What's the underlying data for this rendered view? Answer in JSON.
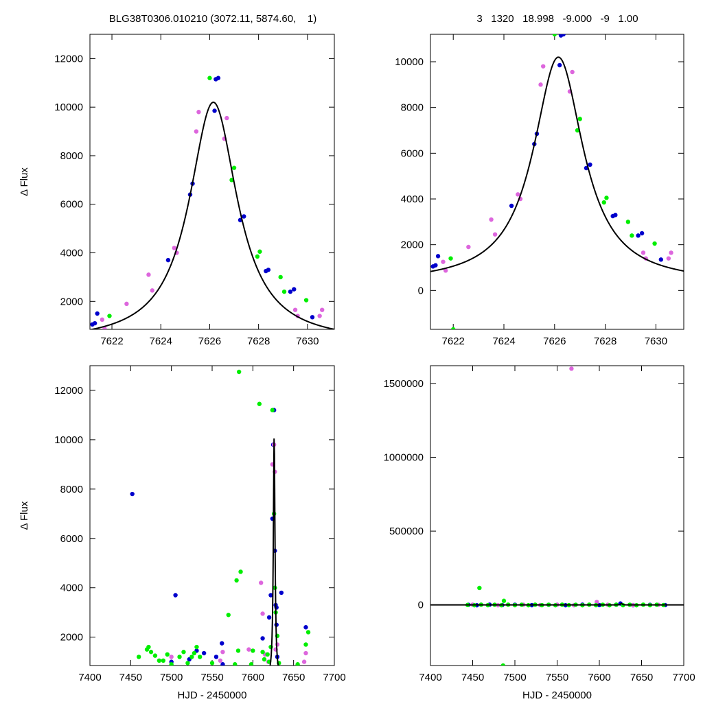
{
  "header": {
    "left_title": "BLG38T0306.010210 (3072.11, 5874.60,    1)",
    "right_title": "3   1320   18.998   -9.000   -9   1.00"
  },
  "colors": {
    "blue": "#0000cc",
    "magenta": "#dd66dd",
    "green": "#00ee00",
    "model": "#000000"
  },
  "chart_data": [
    {
      "panel": "top-left",
      "type": "scatter",
      "title": "",
      "xlabel": "",
      "ylabel": "Δ Flux",
      "xlim": [
        7621.1,
        7631.1
      ],
      "ylim": [
        850,
        13000
      ],
      "xticks": [
        "7622",
        "7624",
        "7626",
        "7628",
        "7630"
      ],
      "yticks": [
        "2000",
        "4000",
        "6000",
        "8000",
        "10000",
        "12000"
      ],
      "model": {
        "t0": 7626.15,
        "peak": 10200,
        "base": 300,
        "tau": 1.2
      },
      "series": [
        {
          "color": "blue",
          "points": [
            [
              7621.2,
              1050
            ],
            [
              7621.3,
              1100
            ],
            [
              7621.4,
              1500
            ],
            [
              7624.3,
              3700
            ],
            [
              7625.2,
              6400
            ],
            [
              7625.3,
              6850
            ],
            [
              7626.2,
              9850
            ],
            [
              7626.25,
              11150
            ],
            [
              7626.35,
              11200
            ],
            [
              7627.25,
              5350
            ],
            [
              7627.4,
              5500
            ],
            [
              7628.3,
              3250
            ],
            [
              7628.4,
              3300
            ],
            [
              7629.3,
              2400
            ],
            [
              7629.45,
              2500
            ],
            [
              7630.2,
              1350
            ]
          ]
        },
        {
          "color": "magenta",
          "points": [
            [
              7621.6,
              1250
            ],
            [
              7621.7,
              870
            ],
            [
              7622.6,
              1900
            ],
            [
              7623.5,
              3100
            ],
            [
              7623.65,
              2450
            ],
            [
              7624.55,
              4200
            ],
            [
              7624.65,
              4000
            ],
            [
              7625.45,
              9000
            ],
            [
              7625.55,
              9800
            ],
            [
              7626.6,
              8700
            ],
            [
              7626.7,
              9550
            ],
            [
              7629.5,
              1650
            ],
            [
              7629.6,
              1400
            ],
            [
              7630.5,
              1400
            ],
            [
              7630.6,
              1650
            ]
          ]
        },
        {
          "color": "green",
          "points": [
            [
              7621.9,
              1400
            ],
            [
              7626.0,
              11200
            ],
            [
              7626.9,
              7000
            ],
            [
              7627.0,
              7500
            ],
            [
              7627.95,
              3850
            ],
            [
              7628.05,
              4050
            ],
            [
              7628.9,
              3000
            ],
            [
              7629.05,
              2400
            ],
            [
              7629.95,
              2050
            ]
          ]
        }
      ]
    },
    {
      "panel": "top-right",
      "type": "scatter",
      "title": "",
      "xlabel": "",
      "ylabel": "",
      "xlim": [
        7621.1,
        7631.1
      ],
      "ylim": [
        -1700,
        11200
      ],
      "xticks": [
        "7622",
        "7624",
        "7626",
        "7628",
        "7630"
      ],
      "yticks": [
        "0",
        "2000",
        "4000",
        "6000",
        "8000",
        "10000"
      ],
      "model": {
        "t0": 7626.15,
        "peak": 10200,
        "base": 300,
        "tau": 1.2
      },
      "series": [
        {
          "color": "blue",
          "points": [
            [
              7621.2,
              1050
            ],
            [
              7621.3,
              1100
            ],
            [
              7621.4,
              1500
            ],
            [
              7624.3,
              3700
            ],
            [
              7625.2,
              6400
            ],
            [
              7625.3,
              6850
            ],
            [
              7626.2,
              9850
            ],
            [
              7626.25,
              11150
            ],
            [
              7626.35,
              11200
            ],
            [
              7627.25,
              5350
            ],
            [
              7627.4,
              5500
            ],
            [
              7628.3,
              3250
            ],
            [
              7628.4,
              3300
            ],
            [
              7629.3,
              2400
            ],
            [
              7629.45,
              2500
            ],
            [
              7630.2,
              1350
            ]
          ]
        },
        {
          "color": "magenta",
          "points": [
            [
              7621.6,
              1250
            ],
            [
              7621.7,
              870
            ],
            [
              7622.6,
              1900
            ],
            [
              7623.5,
              3100
            ],
            [
              7623.65,
              2450
            ],
            [
              7624.55,
              4200
            ],
            [
              7624.65,
              4000
            ],
            [
              7625.45,
              9000
            ],
            [
              7625.55,
              9800
            ],
            [
              7626.6,
              8700
            ],
            [
              7626.7,
              9550
            ],
            [
              7629.5,
              1650
            ],
            [
              7629.6,
              1400
            ],
            [
              7630.5,
              1400
            ],
            [
              7630.6,
              1650
            ]
          ]
        },
        {
          "color": "green",
          "points": [
            [
              7621.9,
              1400
            ],
            [
              7622.0,
              -1700
            ],
            [
              7626.0,
              11200
            ],
            [
              7626.9,
              7000
            ],
            [
              7627.0,
              7500
            ],
            [
              7627.95,
              3850
            ],
            [
              7628.05,
              4050
            ],
            [
              7628.9,
              3000
            ],
            [
              7629.05,
              2400
            ],
            [
              7629.95,
              2050
            ]
          ]
        }
      ]
    },
    {
      "panel": "bottom-left",
      "type": "scatter",
      "title": "",
      "xlabel": "HJD - 2450000",
      "ylabel": "Δ Flux",
      "xlim": [
        7400,
        7700
      ],
      "ylim": [
        850,
        13000
      ],
      "xticks": [
        "7400",
        "7450",
        "7500",
        "7550",
        "7600",
        "7650",
        "7700"
      ],
      "yticks": [
        "2000",
        "4000",
        "6000",
        "8000",
        "10000",
        "12000"
      ],
      "model": {
        "t0": 7626.15,
        "peak": 10200,
        "base": 300,
        "tau": 1.2
      },
      "series": [
        {
          "color": "blue",
          "points": [
            [
              7452,
              7800
            ],
            [
              7500,
              1000
            ],
            [
              7505,
              3700
            ],
            [
              7522,
              1100
            ],
            [
              7531,
              1450
            ],
            [
              7540,
              1350
            ],
            [
              7555,
              1200
            ],
            [
              7562,
              1750
            ],
            [
              7563,
              900
            ],
            [
              7612,
              1950
            ],
            [
              7620,
              2800
            ],
            [
              7622,
              3700
            ],
            [
              7624,
              6800
            ],
            [
              7625,
              9800
            ],
            [
              7626,
              11200
            ],
            [
              7627,
              5500
            ],
            [
              7628,
              3300
            ],
            [
              7629,
              3200
            ],
            [
              7629,
              2500
            ],
            [
              7630,
              1200
            ],
            [
              7635,
              3800
            ],
            [
              7665,
              2400
            ]
          ]
        },
        {
          "color": "magenta",
          "points": [
            [
              7500,
              1200
            ],
            [
              7560,
              1050
            ],
            [
              7563,
              1400
            ],
            [
              7595,
              1500
            ],
            [
              7610,
              4200
            ],
            [
              7612,
              2950
            ],
            [
              7615,
              1300
            ],
            [
              7619,
              1000
            ],
            [
              7624,
              9000
            ],
            [
              7626,
              9800
            ],
            [
              7627,
              8700
            ],
            [
              7628,
              1500
            ],
            [
              7630,
              1700
            ],
            [
              7663,
              1000
            ],
            [
              7665,
              1350
            ]
          ]
        },
        {
          "color": "green",
          "points": [
            [
              7460,
              1200
            ],
            [
              7470,
              1500
            ],
            [
              7472,
              1600
            ],
            [
              7475,
              1400
            ],
            [
              7480,
              1250
            ],
            [
              7485,
              1050
            ],
            [
              7490,
              1050
            ],
            [
              7495,
              1300
            ],
            [
              7500,
              900
            ],
            [
              7510,
              1200
            ],
            [
              7515,
              1400
            ],
            [
              7520,
              950
            ],
            [
              7525,
              1200
            ],
            [
              7528,
              1350
            ],
            [
              7531,
              1600
            ],
            [
              7535,
              1200
            ],
            [
              7550,
              950
            ],
            [
              7570,
              2900
            ],
            [
              7578,
              900
            ],
            [
              7580,
              4300
            ],
            [
              7582,
              1450
            ],
            [
              7583,
              12750
            ],
            [
              7585,
              4650
            ],
            [
              7598,
              900
            ],
            [
              7600,
              1450
            ],
            [
              7608,
              11450
            ],
            [
              7612,
              1400
            ],
            [
              7614,
              1100
            ],
            [
              7618,
              1300
            ],
            [
              7620,
              1000
            ],
            [
              7622,
              1600
            ],
            [
              7624,
              11200
            ],
            [
              7626,
              7000
            ],
            [
              7627,
              4000
            ],
            [
              7628,
              3000
            ],
            [
              7630,
              2050
            ],
            [
              7632,
              950
            ],
            [
              7655,
              900
            ],
            [
              7665,
              1700
            ],
            [
              7668,
              2200
            ]
          ]
        }
      ]
    },
    {
      "panel": "bottom-right",
      "type": "scatter",
      "title": "",
      "xlabel": "HJD - 2450000",
      "ylabel": "",
      "xlim": [
        7400,
        7700
      ],
      "ylim": [
        -410000,
        1620000
      ],
      "xticks": [
        "7400",
        "7450",
        "7500",
        "7550",
        "7600",
        "7650",
        "7700"
      ],
      "yticks": [
        "0",
        "500000",
        "1000000",
        "1500000"
      ],
      "model": {
        "t0": 7626.15,
        "peak": 10200,
        "base": 300,
        "tau": 1.2
      },
      "series": [
        {
          "color": "blue",
          "points": [
            [
              7445,
              1000
            ],
            [
              7455,
              -2000
            ],
            [
              7470,
              2000
            ],
            [
              7485,
              -1000
            ],
            [
              7500,
              1500
            ],
            [
              7520,
              -1500
            ],
            [
              7540,
              1000
            ],
            [
              7560,
              -2000
            ],
            [
              7580,
              2000
            ],
            [
              7600,
              -1000
            ],
            [
              7620,
              1500
            ],
            [
              7625,
              9800
            ],
            [
              7640,
              -1500
            ],
            [
              7660,
              1000
            ],
            [
              7678,
              -1000
            ]
          ]
        },
        {
          "color": "magenta",
          "points": [
            [
              7567,
              1600000
            ],
            [
              7450,
              2000
            ],
            [
              7480,
              -2000
            ],
            [
              7510,
              1500
            ],
            [
              7530,
              -1000
            ],
            [
              7550,
              2000
            ],
            [
              7570,
              -2000
            ],
            [
              7597,
              20000
            ],
            [
              7610,
              1500
            ],
            [
              7640,
              -1500
            ],
            [
              7670,
              1000
            ]
          ]
        },
        {
          "color": "green",
          "points": [
            [
              7458,
              115000
            ],
            [
              7486,
              -410000
            ],
            [
              7487,
              28000
            ],
            [
              7444,
              0
            ],
            [
              7452,
              -2000
            ],
            [
              7460,
              2000
            ],
            [
              7468,
              -1500
            ],
            [
              7476,
              1500
            ],
            [
              7484,
              -2000
            ],
            [
              7492,
              2000
            ],
            [
              7500,
              -1500
            ],
            [
              7508,
              1500
            ],
            [
              7516,
              -2000
            ],
            [
              7524,
              2000
            ],
            [
              7532,
              -1500
            ],
            [
              7540,
              1500
            ],
            [
              7548,
              -2000
            ],
            [
              7556,
              2000
            ],
            [
              7564,
              -1500
            ],
            [
              7572,
              1500
            ],
            [
              7580,
              -2000
            ],
            [
              7588,
              2000
            ],
            [
              7596,
              -1500
            ],
            [
              7604,
              1500
            ],
            [
              7612,
              -2000
            ],
            [
              7620,
              2000
            ],
            [
              7628,
              -1500
            ],
            [
              7636,
              1500
            ],
            [
              7644,
              -2000
            ],
            [
              7652,
              2000
            ],
            [
              7660,
              -1500
            ],
            [
              7668,
              1500
            ],
            [
              7676,
              -1000
            ]
          ]
        }
      ]
    }
  ]
}
